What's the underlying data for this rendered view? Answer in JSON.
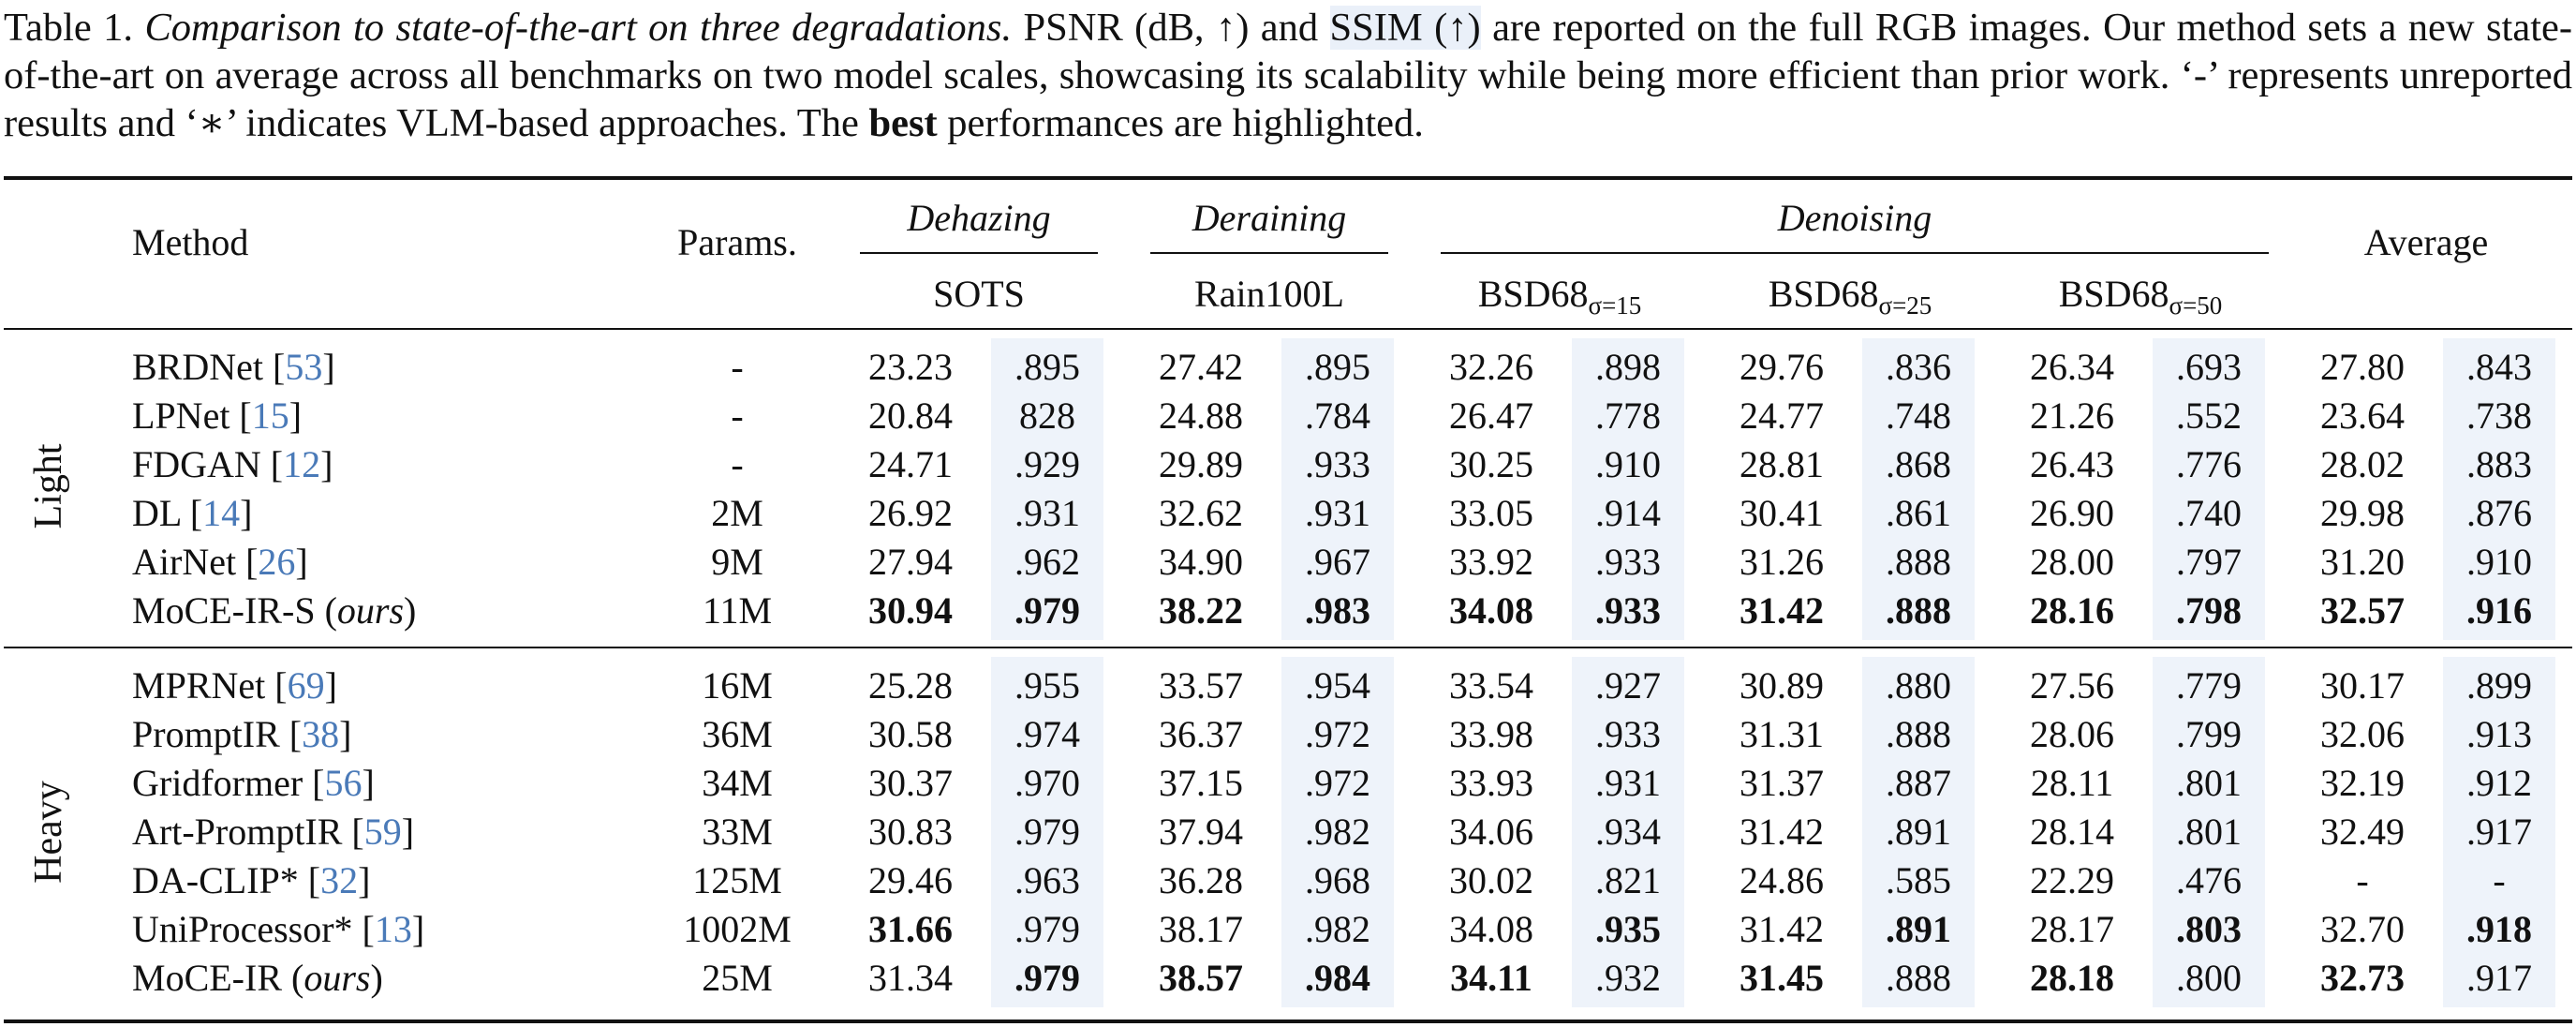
{
  "caption": {
    "label": "Table 1.",
    "title": "Comparison to state-of-the-art on three degradations.",
    "p1": "PSNR (dB, ↑) and",
    "ssim": "SSIM (↑)",
    "p2": "are reported on the full RGB images. Our method sets a new state-of-the-art on average across all benchmarks on two model scales, showcasing its scalability while being more efficient than prior work. ‘-’ represents unreported results and ‘∗’ indicates VLM-based approaches. The",
    "best": "best",
    "p3": "performances are highlighted."
  },
  "header": {
    "method": "Method",
    "params": "Params.",
    "dehazing": "Dehazing",
    "deraining": "Deraining",
    "denoising": "Denoising",
    "average": "Average",
    "sots": "SOTS",
    "rain": "Rain100L",
    "bsd_base": "BSD68",
    "sig15": "σ=15",
    "sig25": "σ=25",
    "sig50": "σ=50"
  },
  "groups": {
    "light": "Light",
    "heavy": "Heavy"
  },
  "rows": [
    {
      "name": "BRDNet [",
      "ref": "53",
      "post": "]",
      "params": "-",
      "v": [
        "23.23",
        ".895",
        "27.42",
        ".895",
        "32.26",
        ".898",
        "29.76",
        ".836",
        "26.34",
        ".693",
        "27.80",
        ".843"
      ]
    },
    {
      "name": "LPNet [",
      "ref": "15",
      "post": "]",
      "params": "-",
      "v": [
        "20.84",
        "828",
        "24.88",
        ".784",
        "26.47",
        ".778",
        "24.77",
        ".748",
        "21.26",
        ".552",
        "23.64",
        ".738"
      ]
    },
    {
      "name": "FDGAN [",
      "ref": "12",
      "post": "]",
      "params": "-",
      "v": [
        "24.71",
        ".929",
        "29.89",
        ".933",
        "30.25",
        ".910",
        "28.81",
        ".868",
        "26.43",
        ".776",
        "28.02",
        ".883"
      ]
    },
    {
      "name": "DL [",
      "ref": "14",
      "post": "]",
      "params": "2M",
      "v": [
        "26.92",
        ".931",
        "32.62",
        ".931",
        "33.05",
        ".914",
        "30.41",
        ".861",
        "26.90",
        ".740",
        "29.98",
        ".876"
      ]
    },
    {
      "name": "AirNet [",
      "ref": "26",
      "post": "]",
      "params": "9M",
      "v": [
        "27.94",
        ".962",
        "34.90",
        ".967",
        "33.92",
        ".933",
        "31.26",
        ".888",
        "28.00",
        ".797",
        "31.20",
        ".910"
      ]
    },
    {
      "name": "MoCE-IR-S (",
      "italic": "ours",
      "post": ")",
      "params": "11M",
      "v": [
        "30.94",
        ".979",
        "38.22",
        ".983",
        "34.08",
        ".933",
        "31.42",
        ".888",
        "28.16",
        ".798",
        "32.57",
        ".916"
      ],
      "bold": [
        0,
        1,
        2,
        3,
        4,
        5,
        6,
        7,
        8,
        9,
        10,
        11
      ]
    },
    {
      "name": "MPRNet [",
      "ref": "69",
      "post": "]",
      "params": "16M",
      "v": [
        "25.28",
        ".955",
        "33.57",
        ".954",
        "33.54",
        ".927",
        "30.89",
        ".880",
        "27.56",
        ".779",
        "30.17",
        ".899"
      ]
    },
    {
      "name": "PromptIR [",
      "ref": "38",
      "post": "]",
      "params": "36M",
      "v": [
        "30.58",
        ".974",
        "36.37",
        ".972",
        "33.98",
        ".933",
        "31.31",
        ".888",
        "28.06",
        ".799",
        "32.06",
        ".913"
      ]
    },
    {
      "name": "Gridformer [",
      "ref": "56",
      "post": "]",
      "params": "34M",
      "v": [
        "30.37",
        ".970",
        "37.15",
        ".972",
        "33.93",
        ".931",
        "31.37",
        ".887",
        "28.11",
        ".801",
        "32.19",
        ".912"
      ]
    },
    {
      "name": "Art-PromptIR [",
      "ref": "59",
      "post": "]",
      "params": "33M",
      "v": [
        "30.83",
        ".979",
        "37.94",
        ".982",
        "34.06",
        ".934",
        "31.42",
        ".891",
        "28.14",
        ".801",
        "32.49",
        ".917"
      ]
    },
    {
      "name": "DA-CLIP* [",
      "ref": "32",
      "post": "]",
      "params": "125M",
      "v": [
        "29.46",
        ".963",
        "36.28",
        ".968",
        "30.02",
        ".821",
        "24.86",
        ".585",
        "22.29",
        ".476",
        "-",
        "-"
      ]
    },
    {
      "name": "UniProcessor* [",
      "ref": "13",
      "post": "]",
      "params": "1002M",
      "v": [
        "31.66",
        ".979",
        "38.17",
        ".982",
        "34.08",
        ".935",
        "31.42",
        ".891",
        "28.17",
        ".803",
        "32.70",
        ".918"
      ],
      "bold": [
        0,
        5,
        7,
        9,
        11
      ]
    },
    {
      "name": "MoCE-IR (",
      "italic": "ours",
      "post": ")",
      "params": "25M",
      "v": [
        "31.34",
        ".979",
        "38.57",
        ".984",
        "34.11",
        ".932",
        "31.45",
        ".888",
        "28.18",
        ".800",
        "32.73",
        ".917"
      ],
      "bold": [
        1,
        2,
        3,
        4,
        6,
        8,
        10
      ]
    }
  ]
}
